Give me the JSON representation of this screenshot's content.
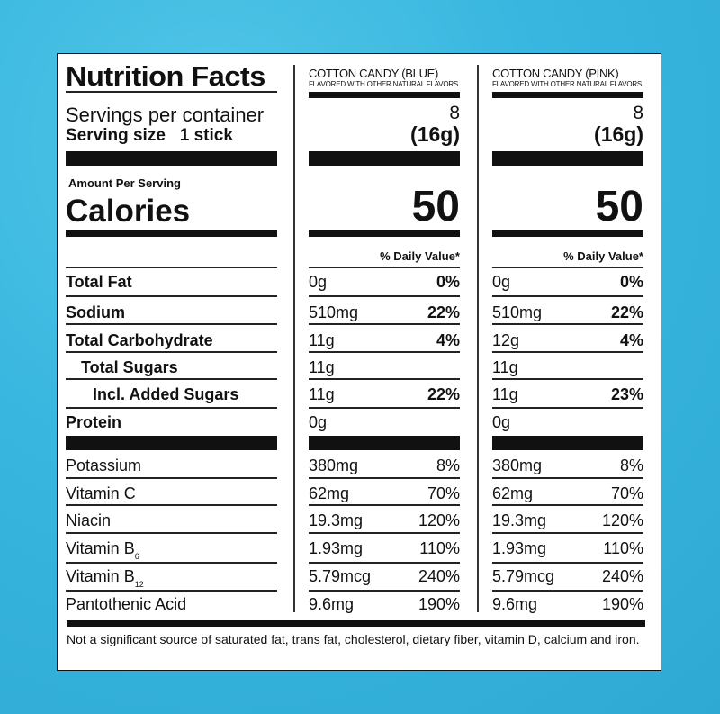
{
  "label": {
    "title": "Nutrition Facts",
    "servings_label": "Servings per container",
    "serving_size_label": "Serving size",
    "serving_size_value": "1 stick",
    "amount_per_serving": "Amount Per Serving",
    "calories_label": "Calories",
    "daily_value_header": "% Daily Value*",
    "products": [
      {
        "name": "COTTON CANDY (BLUE)",
        "subtitle": "FLAVORED WITH OTHER NATURAL FLAVORS",
        "servings": "8",
        "serving_size": "(16g)",
        "calories": "50"
      },
      {
        "name": "COTTON CANDY (PINK)",
        "subtitle": "FLAVORED WITH OTHER NATURAL FLAVORS",
        "servings": "8",
        "serving_size": "(16g)",
        "calories": "50"
      }
    ],
    "nutrients": [
      {
        "label": "Total Fat",
        "values": [
          [
            "0g",
            "0%"
          ],
          [
            "0g",
            "0%"
          ]
        ]
      },
      {
        "label": "Sodium",
        "values": [
          [
            "510mg",
            "22%"
          ],
          [
            "510mg",
            "22%"
          ]
        ]
      },
      {
        "label": "Total Carbohydrate",
        "values": [
          [
            "11g",
            "4%"
          ],
          [
            "12g",
            "4%"
          ]
        ]
      },
      {
        "label": "Total Sugars",
        "values": [
          [
            "11g",
            ""
          ],
          [
            "11g",
            ""
          ]
        ]
      },
      {
        "label": "Incl. Added Sugars",
        "values": [
          [
            "11g",
            "22%"
          ],
          [
            "11g",
            "23%"
          ]
        ]
      },
      {
        "label": "Protein",
        "values": [
          [
            "0g",
            ""
          ],
          [
            "0g",
            ""
          ]
        ]
      }
    ],
    "vitamins": [
      {
        "label": "Potassium",
        "sub": "",
        "values": [
          [
            "380mg",
            "8%"
          ],
          [
            "380mg",
            "8%"
          ]
        ]
      },
      {
        "label": "Vitamin C",
        "sub": "",
        "values": [
          [
            "62mg",
            "70%"
          ],
          [
            "62mg",
            "70%"
          ]
        ]
      },
      {
        "label": "Niacin",
        "sub": "",
        "values": [
          [
            "19.3mg",
            "120%"
          ],
          [
            "19.3mg",
            "120%"
          ]
        ]
      },
      {
        "label": "Vitamin B",
        "sub": "6",
        "values": [
          [
            "1.93mg",
            "110%"
          ],
          [
            "1.93mg",
            "110%"
          ]
        ]
      },
      {
        "label": "Vitamin B",
        "sub": "12",
        "values": [
          [
            "5.79mcg",
            "240%"
          ],
          [
            "5.79mcg",
            "240%"
          ]
        ]
      },
      {
        "label": "Pantothenic Acid",
        "sub": "",
        "values": [
          [
            "9.6mg",
            "190%"
          ],
          [
            "9.6mg",
            "190%"
          ]
        ]
      }
    ],
    "footnote": "Not a significant source of saturated fat, trans fat, cholesterol, dietary fiber, vitamin D, calcium and iron."
  }
}
